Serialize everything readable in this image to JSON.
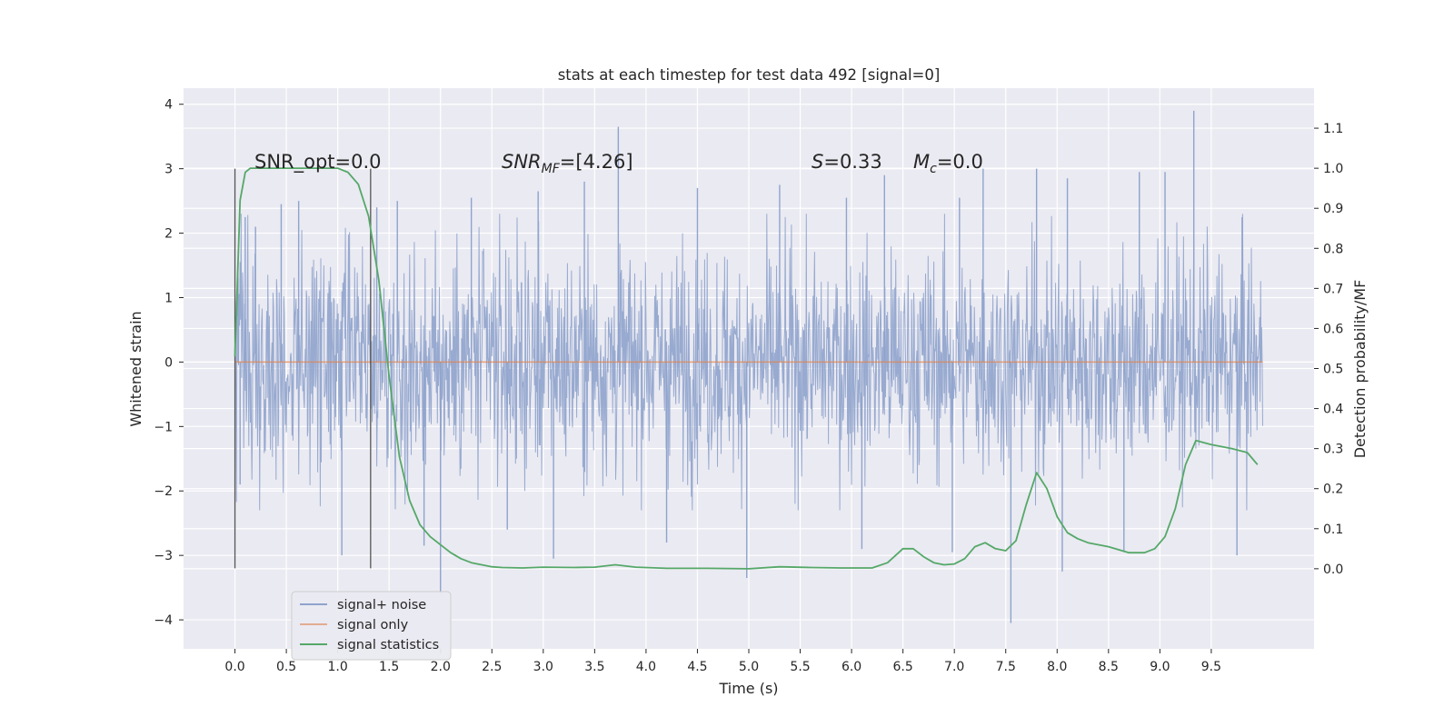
{
  "chart_data": {
    "type": "line",
    "title": "stats at each timestep for test data 492 [signal=0]",
    "xlabel": "Time (s)",
    "ylabel": "Whitened strain",
    "ylabel_right": "Detection probability/MF",
    "xlim": [
      -0.5,
      10.5
    ],
    "ylim": [
      -4.45,
      4.25
    ],
    "ylim_right": [
      -0.2,
      1.2
    ],
    "grid": true,
    "legend_position": "lower-left",
    "x_ticks": [
      "0.0",
      "0.5",
      "1.0",
      "1.5",
      "2.0",
      "2.5",
      "3.0",
      "3.5",
      "4.0",
      "4.5",
      "5.0",
      "5.5",
      "6.0",
      "6.5",
      "7.0",
      "7.5",
      "8.0",
      "8.5",
      "9.0",
      "9.5"
    ],
    "y_ticks": [
      "4",
      "3",
      "2",
      "1",
      "0",
      "−1",
      "−2",
      "−3",
      "−4"
    ],
    "y_ticks_right": [
      "1.1",
      "1.0",
      "0.9",
      "0.8",
      "0.7",
      "0.6",
      "0.5",
      "0.4",
      "0.3",
      "0.2",
      "0.1",
      "0.0"
    ],
    "annotations": {
      "snr_opt": "SNR_opt=0.0",
      "snr_mf_main": "SNR",
      "snr_mf_sub": "MF",
      "snr_mf_value": "=[4.26]",
      "s_symbol": "S",
      "s_value": "=0.33",
      "mc_symbol": "M",
      "mc_sub": "c",
      "mc_value": "=0.0"
    },
    "vertical_markers_x": [
      0.0,
      1.32
    ],
    "vertical_markers_range": [
      -3.2,
      3.0
    ],
    "series": [
      {
        "name": "signal+ noise",
        "color": "#8fa3cc",
        "axis": "left",
        "x_range": [
          0.0,
          10.0
        ],
        "envelope_typical": [
          -1.6,
          1.6
        ],
        "peaks": [
          {
            "x": 0.03,
            "y": 1.3
          },
          {
            "x": 0.1,
            "y": 2.25
          },
          {
            "x": 0.2,
            "y": 2.1
          },
          {
            "x": 0.45,
            "y": 2.45
          },
          {
            "x": 0.62,
            "y": 2.5
          },
          {
            "x": 1.38,
            "y": 2.4
          },
          {
            "x": 1.58,
            "y": 2.5
          },
          {
            "x": 2.3,
            "y": 2.55
          },
          {
            "x": 2.95,
            "y": 2.65
          },
          {
            "x": 3.4,
            "y": 2.8
          },
          {
            "x": 3.73,
            "y": 3.65
          },
          {
            "x": 4.5,
            "y": 2.7
          },
          {
            "x": 5.3,
            "y": 2.75
          },
          {
            "x": 5.95,
            "y": 2.55
          },
          {
            "x": 6.32,
            "y": 2.9
          },
          {
            "x": 7.05,
            "y": 2.55
          },
          {
            "x": 7.28,
            "y": 3.0
          },
          {
            "x": 7.8,
            "y": 3.0
          },
          {
            "x": 8.1,
            "y": 2.85
          },
          {
            "x": 8.8,
            "y": 2.95
          },
          {
            "x": 9.05,
            "y": 2.95
          },
          {
            "x": 9.33,
            "y": 3.9
          },
          {
            "x": 9.8,
            "y": 2.25
          }
        ],
        "troughs": [
          {
            "x": 0.05,
            "y": -1.9
          },
          {
            "x": 1.04,
            "y": -3.0
          },
          {
            "x": 1.84,
            "y": -2.85
          },
          {
            "x": 2.0,
            "y": -3.6
          },
          {
            "x": 2.65,
            "y": -2.6
          },
          {
            "x": 3.1,
            "y": -3.05
          },
          {
            "x": 4.2,
            "y": -2.8
          },
          {
            "x": 4.98,
            "y": -3.35
          },
          {
            "x": 6.1,
            "y": -2.9
          },
          {
            "x": 6.98,
            "y": -2.95
          },
          {
            "x": 7.55,
            "y": -4.05
          },
          {
            "x": 8.05,
            "y": -3.25
          },
          {
            "x": 8.65,
            "y": -2.95
          },
          {
            "x": 9.75,
            "y": -3.0
          }
        ]
      },
      {
        "name": "signal only",
        "color": "#dd8452",
        "axis": "left",
        "x": [
          0.0,
          10.0
        ],
        "y": [
          0.0,
          0.0
        ]
      },
      {
        "name": "signal statistics",
        "color": "#55a868",
        "axis": "right",
        "x": [
          0.0,
          0.05,
          0.1,
          0.15,
          0.2,
          0.3,
          0.5,
          0.7,
          0.9,
          1.0,
          1.1,
          1.2,
          1.3,
          1.4,
          1.5,
          1.6,
          1.7,
          1.8,
          1.9,
          2.0,
          2.1,
          2.2,
          2.3,
          2.4,
          2.5,
          2.6,
          2.8,
          3.0,
          3.3,
          3.5,
          3.7,
          3.9,
          4.2,
          4.6,
          5.0,
          5.3,
          5.6,
          5.9,
          6.2,
          6.35,
          6.5,
          6.6,
          6.7,
          6.8,
          6.9,
          7.0,
          7.1,
          7.2,
          7.3,
          7.4,
          7.5,
          7.6,
          7.7,
          7.8,
          7.9,
          8.0,
          8.1,
          8.2,
          8.3,
          8.5,
          8.7,
          8.85,
          8.95,
          9.05,
          9.15,
          9.25,
          9.35,
          9.5,
          9.7,
          9.85,
          9.95
        ],
        "y": [
          0.53,
          0.92,
          0.99,
          1.0,
          1.0,
          1.0,
          1.0,
          1.0,
          1.0,
          1.0,
          0.99,
          0.96,
          0.88,
          0.72,
          0.48,
          0.28,
          0.17,
          0.11,
          0.08,
          0.06,
          0.04,
          0.025,
          0.015,
          0.01,
          0.005,
          0.003,
          0.002,
          0.004,
          0.003,
          0.004,
          0.01,
          0.004,
          0.001,
          0.001,
          0.0,
          0.005,
          0.003,
          0.002,
          0.002,
          0.015,
          0.05,
          0.05,
          0.03,
          0.015,
          0.01,
          0.012,
          0.025,
          0.055,
          0.065,
          0.05,
          0.045,
          0.07,
          0.16,
          0.24,
          0.2,
          0.13,
          0.09,
          0.075,
          0.065,
          0.055,
          0.04,
          0.04,
          0.05,
          0.08,
          0.15,
          0.26,
          0.32,
          0.31,
          0.3,
          0.29,
          0.26
        ]
      }
    ],
    "legend": [
      "signal+ noise",
      "signal only",
      "signal statistics"
    ]
  }
}
